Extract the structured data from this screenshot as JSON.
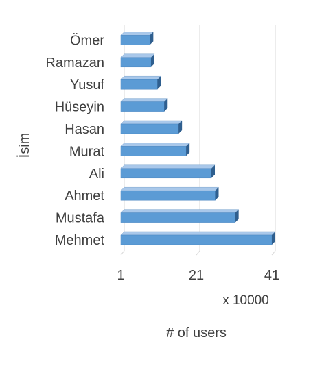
{
  "chart_data": {
    "type": "bar",
    "orientation": "horizontal",
    "style": "3d",
    "categories": [
      "Mehmet",
      "Mustafa",
      "Ahmet",
      "Ali",
      "Murat",
      "Hasan",
      "Hüseyin",
      "Yusuf",
      "Ramazan",
      "Ömer"
    ],
    "values": [
      41.0,
      31.3,
      26.0,
      25.0,
      18.3,
      16.3,
      12.5,
      10.7,
      9.0,
      8.7
    ],
    "xlabel": "# of users",
    "ylabel": "İsim",
    "x_multiplier_label": "x 10000",
    "xlim": [
      1,
      41
    ],
    "xticks": [
      "1",
      "21",
      "41"
    ],
    "grid": true,
    "colors": {
      "bar_front": "#5b9bd5",
      "bar_top": "#a9c8ea",
      "bar_side": "#2f5f8f",
      "grid": "#d9d9d9",
      "text": "#404040"
    }
  }
}
